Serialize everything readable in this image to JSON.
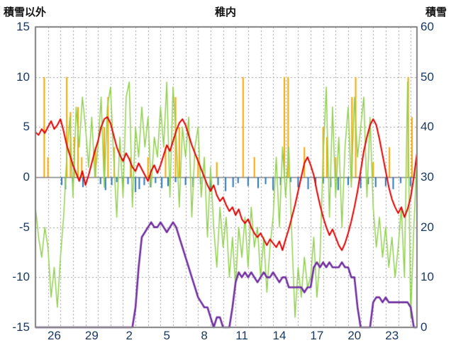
{
  "labels": {
    "left_axis_title": "積雪以外",
    "title": "稚内",
    "right_axis_title": "積雪"
  },
  "chart_data": {
    "type": "line",
    "title": "稚内",
    "left_axis": {
      "title": "積雪以外",
      "min": -15,
      "max": 15,
      "ticks": [
        15,
        10,
        5,
        0,
        -5,
        -10,
        -15
      ]
    },
    "right_axis": {
      "title": "積雪",
      "min": 0,
      "max": 60,
      "ticks": [
        60,
        50,
        40,
        30,
        20,
        10,
        0
      ]
    },
    "x_axis": {
      "min": 0,
      "max": 30.5,
      "grid_interval": 1,
      "tick_labels": [
        "26",
        "29",
        "2",
        "5",
        "8",
        "11",
        "14",
        "17",
        "20",
        "23"
      ],
      "tick_positions": [
        1.5,
        4.5,
        7.5,
        10.5,
        13.5,
        16.5,
        19.5,
        22.5,
        25.5,
        28.5
      ]
    },
    "grid": {
      "color": "#9e9e9e",
      "zero_line_color": "#7f7f7f",
      "border_color": "#7f7f7f"
    },
    "series": [
      {
        "name": "orange-bars",
        "type": "bar",
        "axis": "left",
        "color": "#f5a800",
        "width": 2,
        "points": [
          [
            0.7,
            10
          ],
          [
            1.0,
            2
          ],
          [
            2.5,
            10
          ],
          [
            2.8,
            6.5
          ],
          [
            3.1,
            4
          ],
          [
            3.4,
            7
          ],
          [
            3.7,
            2
          ],
          [
            4.8,
            3
          ],
          [
            5.5,
            5
          ],
          [
            5.8,
            8
          ],
          [
            6.3,
            3
          ],
          [
            7.6,
            2
          ],
          [
            9.0,
            2
          ],
          [
            10.4,
            3
          ],
          [
            11.2,
            8
          ],
          [
            11.5,
            5
          ],
          [
            13.0,
            2
          ],
          [
            14.5,
            1.5
          ],
          [
            16.6,
            10
          ],
          [
            17.5,
            2
          ],
          [
            19.9,
            10
          ],
          [
            20.2,
            10
          ],
          [
            21.5,
            3
          ],
          [
            23.0,
            5
          ],
          [
            23.3,
            4
          ],
          [
            24.0,
            2
          ],
          [
            25.3,
            8
          ],
          [
            25.6,
            10
          ],
          [
            27.0,
            1.5
          ],
          [
            28.3,
            3
          ],
          [
            29.8,
            10
          ],
          [
            30.1,
            6
          ]
        ]
      },
      {
        "name": "blue-bars",
        "type": "bar",
        "axis": "left",
        "color": "#2e75b6",
        "width": 2,
        "points": [
          [
            2.1,
            -0.8
          ],
          [
            2.4,
            -1.2
          ],
          [
            3.0,
            -0.6
          ],
          [
            3.8,
            -1.0
          ],
          [
            5.2,
            -0.7
          ],
          [
            5.6,
            -1.3
          ],
          [
            6.1,
            -0.8
          ],
          [
            6.5,
            -0.5
          ],
          [
            7.0,
            -1.0
          ],
          [
            7.4,
            -0.7
          ],
          [
            8.0,
            -1.5
          ],
          [
            8.3,
            -1.2
          ],
          [
            8.7,
            -0.8
          ],
          [
            9.2,
            -1.0
          ],
          [
            9.6,
            -0.6
          ],
          [
            10.1,
            -1.1
          ],
          [
            10.6,
            -0.9
          ],
          [
            11.2,
            -0.5
          ],
          [
            12.0,
            -0.8
          ],
          [
            12.6,
            -1.0
          ],
          [
            13.2,
            -0.7
          ],
          [
            14.0,
            -1.2
          ],
          [
            14.6,
            -0.8
          ],
          [
            15.2,
            -1.4
          ],
          [
            15.8,
            -1.0
          ],
          [
            16.2,
            -0.6
          ],
          [
            17.0,
            -0.9
          ],
          [
            17.8,
            -1.1
          ],
          [
            18.4,
            -0.7
          ],
          [
            19.0,
            -1.3
          ],
          [
            19.6,
            -0.8
          ],
          [
            20.4,
            -0.5
          ],
          [
            21.0,
            -1.0
          ],
          [
            21.8,
            -1.2
          ],
          [
            22.4,
            -0.9
          ],
          [
            23.0,
            -0.6
          ],
          [
            23.6,
            -1.0
          ],
          [
            24.2,
            -1.3
          ],
          [
            25.0,
            -0.8
          ],
          [
            26.0,
            -1.1
          ],
          [
            26.6,
            -0.7
          ],
          [
            27.2,
            -1.0
          ],
          [
            28.0,
            -0.9
          ],
          [
            28.6,
            -1.2
          ],
          [
            29.2,
            -0.6
          ],
          [
            30.0,
            -0.9
          ]
        ]
      },
      {
        "name": "green-line",
        "type": "line",
        "axis": "left",
        "color": "#92d050",
        "width": 1.5,
        "dt": 0.25,
        "values": [
          -3,
          -6,
          -8,
          -5,
          -7,
          -12,
          -9,
          -13,
          -8,
          -4,
          2,
          6,
          -2,
          7,
          3,
          8,
          5,
          1,
          6,
          0,
          3,
          8,
          -1,
          7,
          9,
          2,
          -4,
          4,
          -2,
          8,
          9.5,
          -3,
          5,
          2,
          7,
          3,
          6,
          -1,
          4,
          2,
          7,
          3,
          9.5,
          -2,
          9,
          4,
          -3,
          5,
          2,
          6,
          -4,
          3,
          5,
          -2,
          2,
          -6,
          1,
          -5,
          -9,
          -3,
          -7,
          -4,
          -10,
          -6,
          -11,
          -5,
          -8,
          -4,
          -9,
          -3,
          -7,
          -5,
          -10,
          -6,
          -11.5,
          -7,
          -4,
          2,
          -5,
          3,
          -2,
          3,
          -6,
          -14,
          -9,
          -12,
          -8,
          -11,
          -10,
          -6,
          -12,
          -8,
          2,
          9,
          -4,
          7,
          -2,
          4,
          -5,
          3,
          7,
          -1,
          8,
          2,
          5,
          8,
          -2,
          6,
          -3,
          -7,
          -4,
          -8,
          -5,
          -9,
          -6,
          -10,
          -7,
          -3,
          -10,
          9.5,
          -14,
          -5,
          2
        ]
      },
      {
        "name": "red-line",
        "type": "line",
        "axis": "left",
        "color": "#e00000",
        "width": 2,
        "dt": 0.25,
        "values": [
          4.5,
          4.2,
          4.8,
          4.4,
          5.0,
          5.6,
          4.8,
          5.2,
          5.8,
          4.6,
          3.2,
          2.2,
          1.2,
          0.4,
          -0.4,
          0.6,
          -0.8,
          0.2,
          1.4,
          2.6,
          3.6,
          5.0,
          5.8,
          6.0,
          5.4,
          4.2,
          3.0,
          2.2,
          1.6,
          2.4,
          1.8,
          1.0,
          0.6,
          1.4,
          0.8,
          0.2,
          -0.4,
          0.6,
          1.2,
          0.4,
          1.2,
          2.2,
          3.2,
          2.6,
          3.6,
          4.6,
          5.4,
          5.8,
          5.2,
          4.2,
          3.2,
          2.4,
          1.6,
          0.8,
          0.0,
          -0.8,
          -1.4,
          -0.8,
          -1.8,
          -2.4,
          -2.0,
          -2.8,
          -3.4,
          -3.0,
          -3.8,
          -3.2,
          -4.2,
          -4.6,
          -4.2,
          -5.0,
          -5.6,
          -6.0,
          -5.6,
          -6.2,
          -6.8,
          -6.2,
          -6.6,
          -7.0,
          -6.4,
          -7.3,
          -6.2,
          -5.2,
          -4.0,
          -2.8,
          -1.4,
          0.0,
          1.4,
          2.0,
          1.2,
          0.2,
          -1.4,
          -2.8,
          -4.0,
          -5.0,
          -5.8,
          -5.2,
          -6.0,
          -6.8,
          -7.3,
          -6.6,
          -5.6,
          -4.4,
          -3.0,
          -1.4,
          0.6,
          2.6,
          4.0,
          5.2,
          5.8,
          5.2,
          3.8,
          2.2,
          0.6,
          -1.0,
          -2.2,
          -3.0,
          -3.6,
          -3.0,
          -4.0,
          -3.2,
          -2.0,
          0.0,
          2.4
        ]
      },
      {
        "name": "purple-line",
        "type": "line",
        "axis": "right",
        "color": "#7030a0",
        "width": 2.6,
        "dt": 0.25,
        "values": [
          0,
          0,
          0,
          0,
          0,
          0,
          0,
          0,
          0,
          0,
          0,
          0,
          0,
          0,
          0,
          0,
          0,
          0,
          0,
          0,
          0,
          0,
          0,
          0,
          0,
          0,
          0,
          0,
          0,
          0,
          0,
          0,
          4,
          12,
          18,
          19,
          20,
          21,
          20,
          20,
          21,
          20,
          19,
          20,
          21,
          20,
          18,
          16,
          14,
          12,
          10,
          8,
          6,
          5,
          4,
          4,
          2,
          0,
          2,
          2,
          0,
          0,
          0,
          4,
          9,
          11,
          10,
          11,
          10,
          11,
          10,
          9,
          10,
          11,
          10,
          10,
          11,
          10,
          9,
          10,
          10,
          8,
          8,
          8,
          8,
          8,
          7,
          8,
          8,
          12,
          13,
          12,
          13,
          12,
          13,
          12,
          12,
          12,
          13,
          12,
          12,
          10,
          10,
          4,
          0,
          0,
          0,
          0,
          5,
          6,
          6,
          5,
          6,
          5,
          5,
          5,
          5,
          5,
          5,
          5,
          4,
          0,
          0
        ]
      }
    ]
  }
}
